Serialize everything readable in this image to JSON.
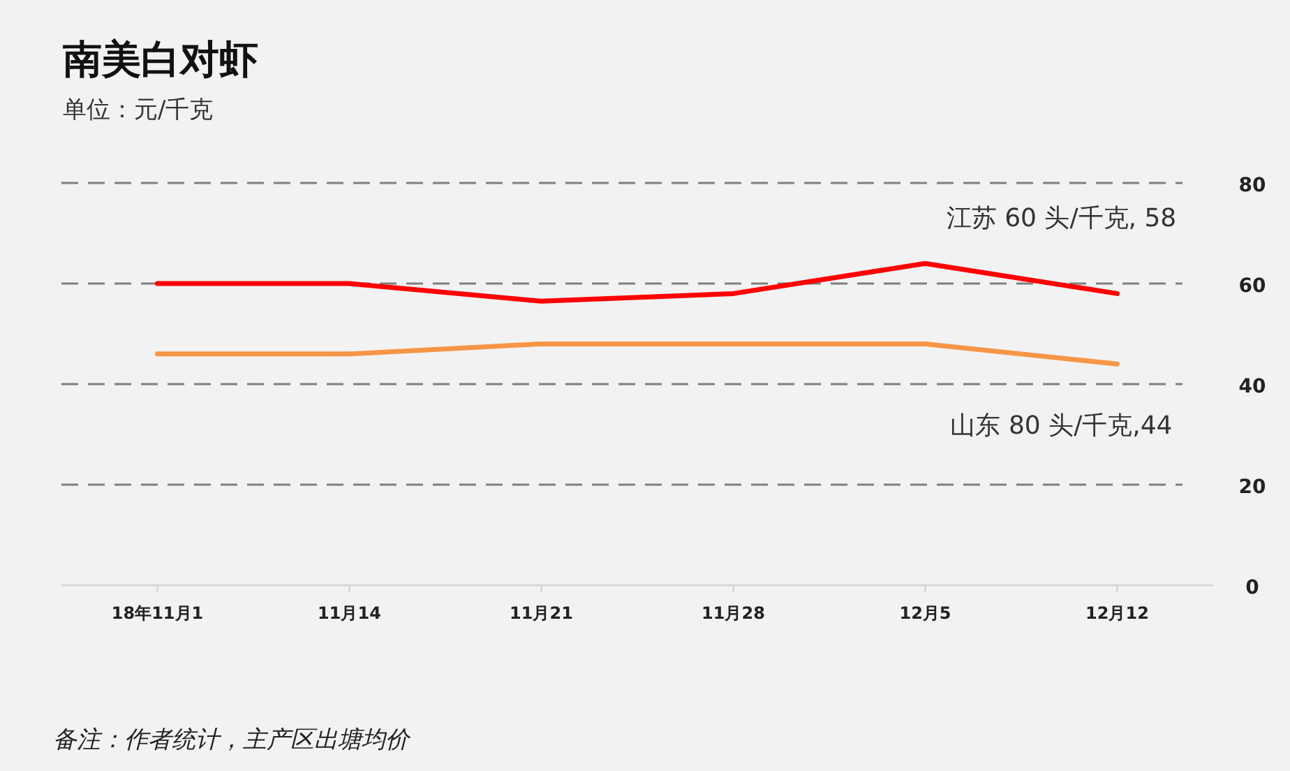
{
  "chart_data": {
    "type": "line",
    "title": "南美白对虾",
    "subtitle": "单位：元/千克",
    "categories": [
      "18年11月1",
      "11月14",
      "11月21",
      "11月28",
      "12月5",
      "12月12"
    ],
    "series": [
      {
        "color": "#ff0000",
        "values": [
          60,
          60,
          56.5,
          58,
          64,
          58
        ]
      },
      {
        "color": "#f79646",
        "values": [
          46,
          46,
          48,
          48,
          48,
          44
        ]
      }
    ],
    "ylim": [
      0,
      80
    ],
    "yticks": [
      0,
      20,
      40,
      60,
      80
    ],
    "grid": "y",
    "marker": "none",
    "line_style": "solid",
    "annotations": [
      {
        "text": "江苏 60 头/千克, 58",
        "x": "12月12",
        "y": 58
      },
      {
        "text": "山东 80 头/千克,44",
        "x": "12月12",
        "y": 44
      },
      "备注：作者统计，主产区出塘均价"
    ]
  }
}
